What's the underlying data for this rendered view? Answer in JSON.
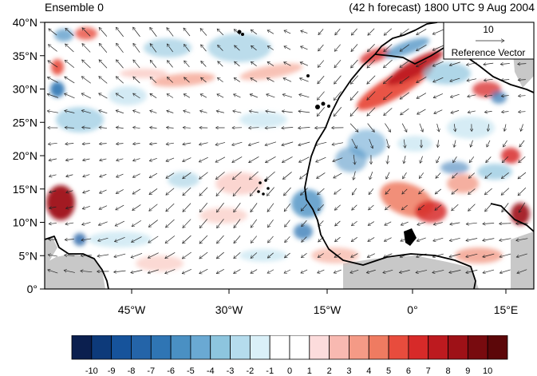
{
  "title_left": "Ensemble 0",
  "title_right": "(42 h forecast) 1800 UTC 9 Aug 2004",
  "reference_vector": {
    "magnitude": "10",
    "label": "Reference Vector"
  },
  "lat_ticks": [
    "40°N",
    "35°N",
    "30°N",
    "25°N",
    "20°N",
    "15°N",
    "10°N",
    "5°N",
    "0°"
  ],
  "lon_ticks": [
    "45°W",
    "30°W",
    "15°W",
    "0°",
    "15°E"
  ],
  "colorbar": {
    "labels": [
      "-10",
      "-9",
      "-8",
      "-7",
      "-6",
      "-5",
      "-4",
      "-3",
      "-2",
      "-1",
      "0",
      "1",
      "2",
      "3",
      "4",
      "5",
      "6",
      "7",
      "8",
      "9",
      "10"
    ],
    "colors": [
      "#0b1f4f",
      "#0d3a7a",
      "#16539b",
      "#2464a8",
      "#2f75b4",
      "#4a90c3",
      "#6aa9d3",
      "#8dc5de",
      "#b5dced",
      "#daf0f8",
      "#ffffff",
      "#ffffff",
      "#fcdcdc",
      "#f8b9b1",
      "#f49a86",
      "#ef7b61",
      "#e84c3d",
      "#d72a29",
      "#bd1a1f",
      "#9e1117",
      "#780b0f",
      "#5c0709"
    ]
  },
  "colors": {
    "land_fill": "#c8c8c8",
    "coast": "#000000",
    "arrows": "#222222"
  }
}
